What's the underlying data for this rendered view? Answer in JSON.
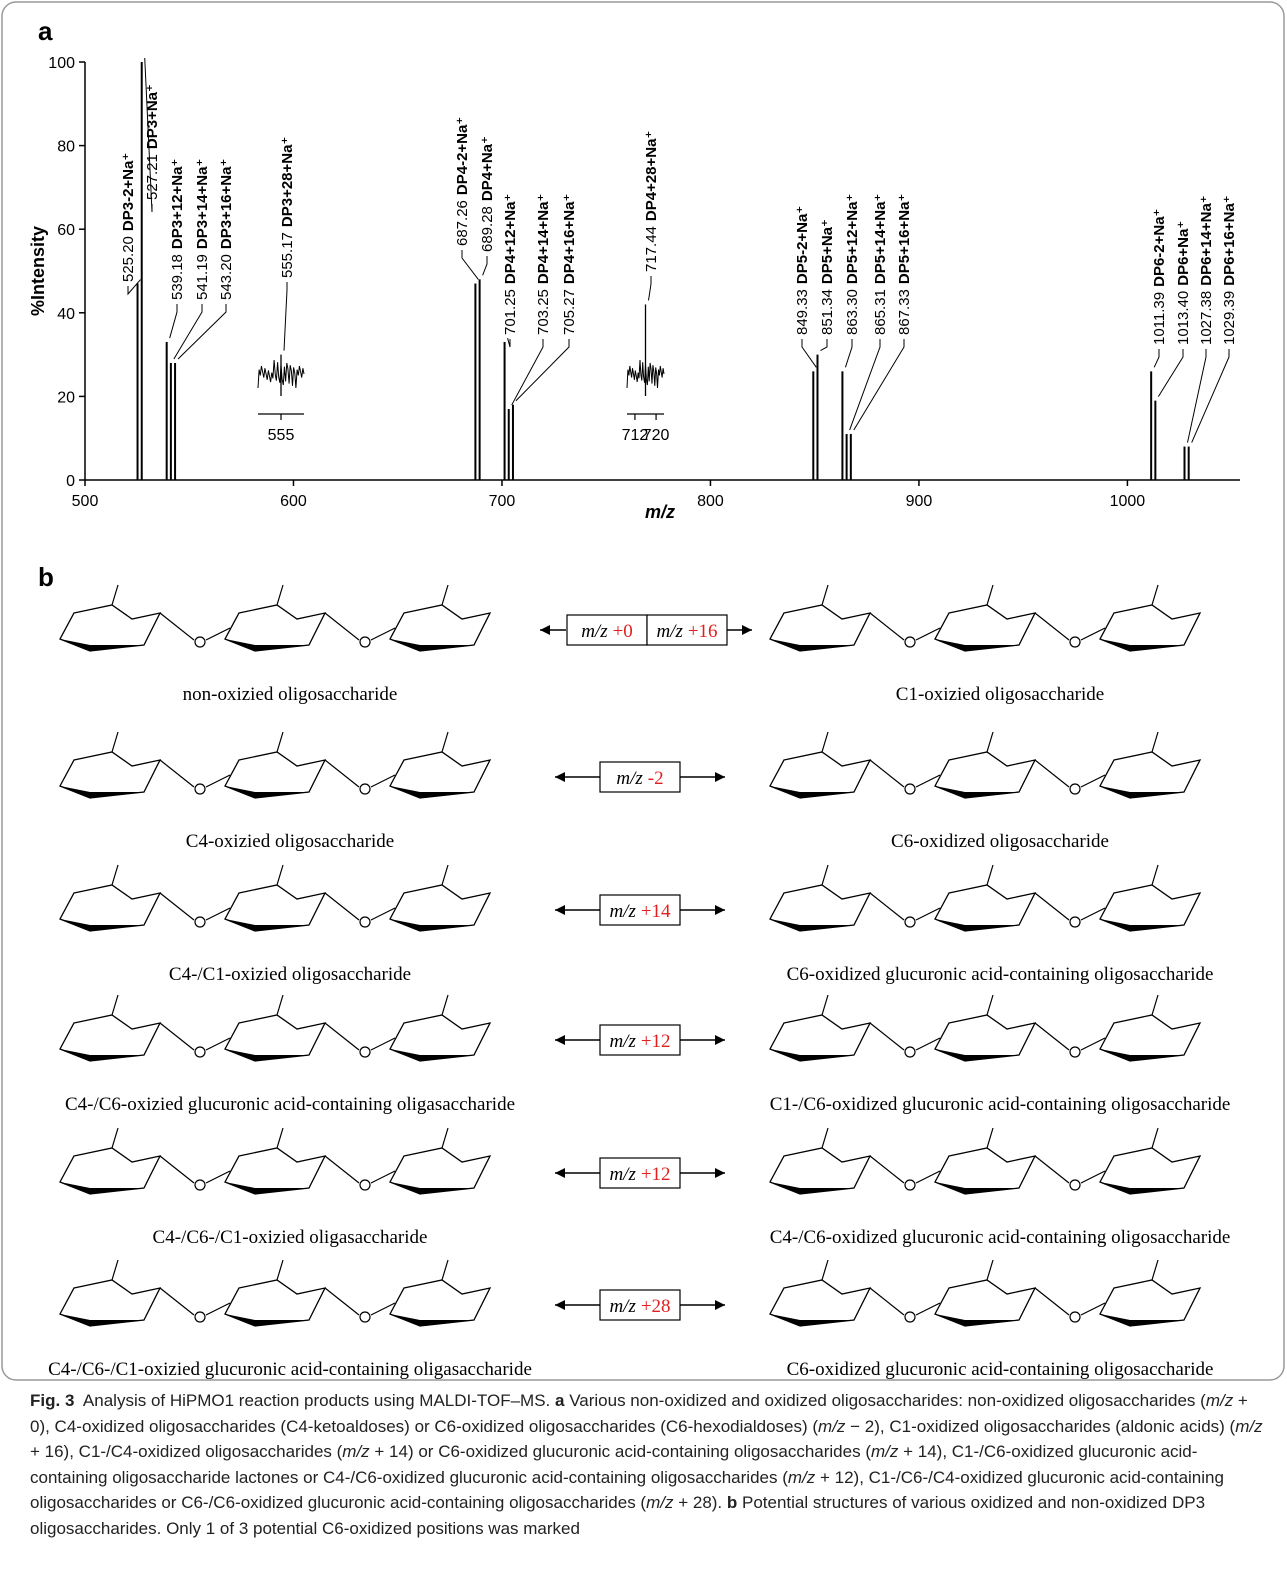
{
  "panel_labels": [
    "a",
    "b"
  ],
  "chart_data": {
    "type": "spectrum",
    "x_label": "m/z",
    "y_label": "%Intensity",
    "color": "#000000",
    "xlim": [
      500,
      1054
    ],
    "ylim": [
      0,
      100
    ],
    "xticks": [
      500,
      600,
      700,
      800,
      900,
      1000
    ],
    "yticks": [
      0,
      20,
      40,
      60,
      80,
      100
    ],
    "x": [
      525.2,
      527.21,
      539.18,
      541.19,
      543.2,
      555.17,
      687.26,
      689.28,
      701.25,
      703.25,
      705.27,
      717.44,
      849.33,
      851.34,
      863.3,
      865.31,
      867.33,
      1011.39,
      1013.4,
      1027.38,
      1029.39
    ],
    "x_labels": [
      "525.20",
      "527.21",
      "539.18",
      "541.19",
      "543.20",
      "555.17",
      "687.26",
      "689.28",
      "701.25",
      "703.25",
      "705.27",
      "717.44",
      "849.33",
      "851.34",
      "863.30",
      "865.31",
      "867.33",
      "1011.39",
      "1013.40",
      "1027.38",
      "1029.39"
    ],
    "labels": [
      "DP3-2+Na⁺",
      "DP3+Na⁺",
      "DP3+12+Na⁺",
      "DP3+14+Na⁺",
      "DP3+16+Na⁺",
      "DP3+28+Na⁺",
      "DP4-2+Na⁺",
      "DP4+Na⁺",
      "DP4+12+Na⁺",
      "DP4+14+Na⁺",
      "DP4+16+Na⁺",
      "DP4+28+Na⁺",
      "DP5-2+Na⁺",
      "DP5+Na⁺",
      "DP5+12+Na⁺",
      "DP5+14+Na⁺",
      "DP5+16+Na⁺",
      "DP6-2+Na⁺",
      "DP6+Na⁺",
      "DP6+14+Na⁺",
      "DP6+16+Na⁺"
    ],
    "values": [
      47,
      100,
      33,
      28,
      28,
      30,
      47,
      48,
      33,
      17,
      18,
      42,
      26,
      30,
      26,
      11,
      11,
      26,
      19,
      8,
      8
    ],
    "insets": [
      {
        "xlim": [
          549,
          561
        ],
        "xticks": [
          555
        ]
      },
      {
        "xlim": [
          709,
          723
        ],
        "xticks": [
          712,
          720
        ]
      }
    ]
  },
  "panel_b": {
    "mz": "m/z",
    "rows": [
      {
        "left": "non-oxizied oligosaccharide",
        "right": "C1-oxizied oligosaccharide",
        "shifts": [
          "+0",
          "+16"
        ]
      },
      {
        "left": "C4-oxizied oligosaccharide",
        "right": "C6-oxidized oligosaccharide",
        "shifts": [
          "-2"
        ]
      },
      {
        "left": "C4-/C1-oxizied oligosaccharide",
        "right": "C6-oxidized glucuronic acid-containing oligosaccharide",
        "shifts": [
          "+14"
        ]
      },
      {
        "left": "C4-/C6-oxizied glucuronic acid-containing oligasaccharide",
        "right": "C1-/C6-oxidized glucuronic acid-containing oligosaccharide",
        "shifts": [
          "+12"
        ]
      },
      {
        "left": "C4-/C6-/C1-oxizied oligasaccharide",
        "right": "C4-/C6-oxidized glucuronic acid-containing oligosaccharide",
        "shifts": [
          "+12"
        ]
      },
      {
        "left": "C4-/C6-/C1-oxizied glucuronic acid-containing oligasaccharide",
        "right": "C6-oxidized glucuronic acid-containing oligosaccharide",
        "shifts": [
          "+28"
        ]
      }
    ]
  },
  "caption": [
    {
      "text": "Fig. 3",
      "bold": true
    },
    {
      "text": "  Analysis of HiPMO1 reaction products using MALDI-TOF–MS. "
    },
    {
      "text": "a",
      "bold": true
    },
    {
      "text": " Various non-oxidized and oxidized oligosaccharides: non-oxidized oligosaccharides ("
    },
    {
      "text": "m/z",
      "italic": true
    },
    {
      "text": " + 0), C4-oxidized oligosaccharides (C4-ketoaldoses) or C6-oxidized oligosaccharides (C6-hexodialdoses) ("
    },
    {
      "text": "m/z",
      "italic": true
    },
    {
      "text": " − 2), C1-oxidized oligosaccharides (aldonic acids) ("
    },
    {
      "text": "m/z",
      "italic": true
    },
    {
      "text": " + 16), C1-/C4-oxidized oligosaccharides ("
    },
    {
      "text": "m/z",
      "italic": true
    },
    {
      "text": " + 14) or C6-oxidized glucuronic acid-containing oligosaccharides ("
    },
    {
      "text": "m/z",
      "italic": true
    },
    {
      "text": " + 14), C1-/C6-oxidized glucuronic acid-containing oligosaccharide lactones or C4-/C6-oxidized glucuronic acid-containing oligosaccharides ("
    },
    {
      "text": "m/z",
      "italic": true
    },
    {
      "text": " + 12), C1-/C6-/C4-oxidized glucuronic acid-containing oligosaccharides or C6-/C6-oxidized glucuronic acid-containing oligosaccharides ("
    },
    {
      "text": "m/z",
      "italic": true
    },
    {
      "text": " + 28). "
    },
    {
      "text": "b",
      "bold": true
    },
    {
      "text": " Potential structures of various oxidized and non-oxidized DP3 oligosaccharides. Only 1 of 3 potential C6-oxidized positions was marked"
    }
  ]
}
